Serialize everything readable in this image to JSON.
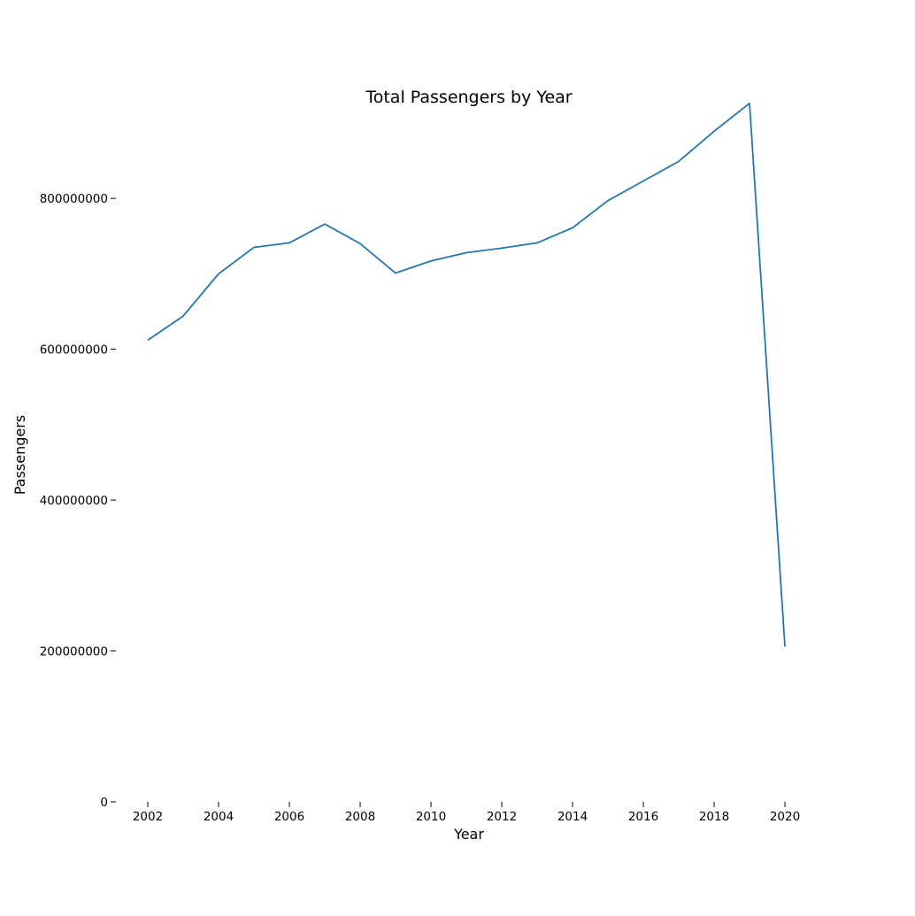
{
  "chart_data": {
    "type": "line",
    "title": "Total Passengers by Year",
    "xlabel": "Year",
    "ylabel": "Passengers",
    "x": [
      2002,
      2003,
      2004,
      2005,
      2006,
      2007,
      2008,
      2009,
      2010,
      2011,
      2012,
      2013,
      2014,
      2015,
      2016,
      2017,
      2018,
      2019,
      2020
    ],
    "series": [
      {
        "values": [
          612000000,
          644000000,
          700000000,
          735000000,
          741000000,
          766000000,
          740000000,
          701000000,
          717000000,
          728000000,
          734000000,
          741000000,
          761000000,
          797000000,
          823000000,
          849000000,
          889000000,
          926000000,
          206000000
        ],
        "color": "#1f77b4"
      }
    ],
    "xticks": [
      2002,
      2004,
      2006,
      2008,
      2010,
      2012,
      2014,
      2016,
      2018,
      2020
    ],
    "xtick_labels": [
      "2002",
      "2004",
      "2006",
      "2008",
      "2010",
      "2012",
      "2014",
      "2016",
      "2018",
      "2020"
    ],
    "yticks": [
      0,
      200000000,
      400000000,
      600000000,
      800000000
    ],
    "ytick_labels": [
      "0",
      "200000000",
      "400000000",
      "600000000",
      "800000000"
    ],
    "xlim": [
      2001.1,
      2021.2
    ],
    "ylim": [
      0,
      982000000
    ],
    "grid": false
  }
}
